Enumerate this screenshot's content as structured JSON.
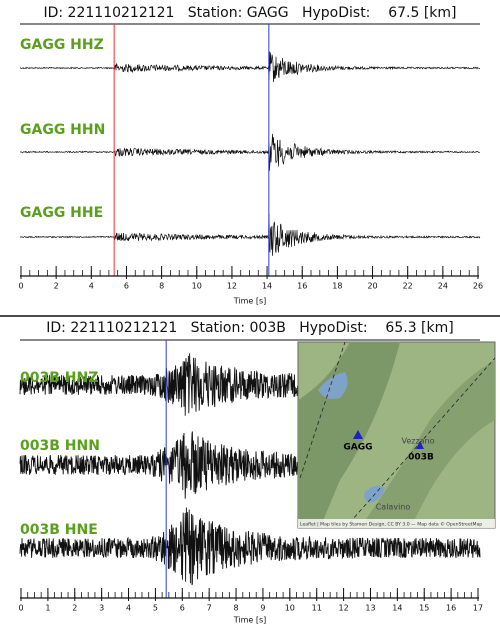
{
  "panels": [
    {
      "header": "ID: 221110212121   Station: GAGG   HypoDist:    67.5 [km]",
      "traces": [
        "GAGG HHZ",
        "GAGG HHN",
        "GAGG HHE"
      ],
      "xlim": [
        0,
        26
      ],
      "xticks": [
        0,
        2,
        4,
        6,
        8,
        10,
        12,
        14,
        16,
        18,
        20,
        22,
        24,
        26
      ],
      "xlabel": "Time [s]",
      "picks": [
        {
          "time": 5.3,
          "color": "#e8303a"
        },
        {
          "time": 14.1,
          "color": "#2a3ad8"
        }
      ]
    },
    {
      "header": "ID: 221110212121   Station: 003B   HypoDist:    65.3 [km]",
      "traces": [
        "003B HNZ",
        "003B HNN",
        "003B HNE"
      ],
      "xlim": [
        0,
        17
      ],
      "xticks": [
        0,
        1,
        2,
        3,
        4,
        5,
        6,
        7,
        8,
        9,
        10,
        11,
        12,
        13,
        14,
        15,
        16,
        17
      ],
      "xlabel": "Time [s]",
      "picks": [
        {
          "time": 5.4,
          "color": "#2a3ad8"
        }
      ]
    }
  ],
  "map": {
    "places": [
      "Vezzano",
      "Calavino"
    ],
    "stations": [
      "GAGG",
      "003B"
    ],
    "attribution": "Leaflet | Map tiles by Stamen Design, CC BY 3.0 — Map data © OpenStreetMap"
  }
}
